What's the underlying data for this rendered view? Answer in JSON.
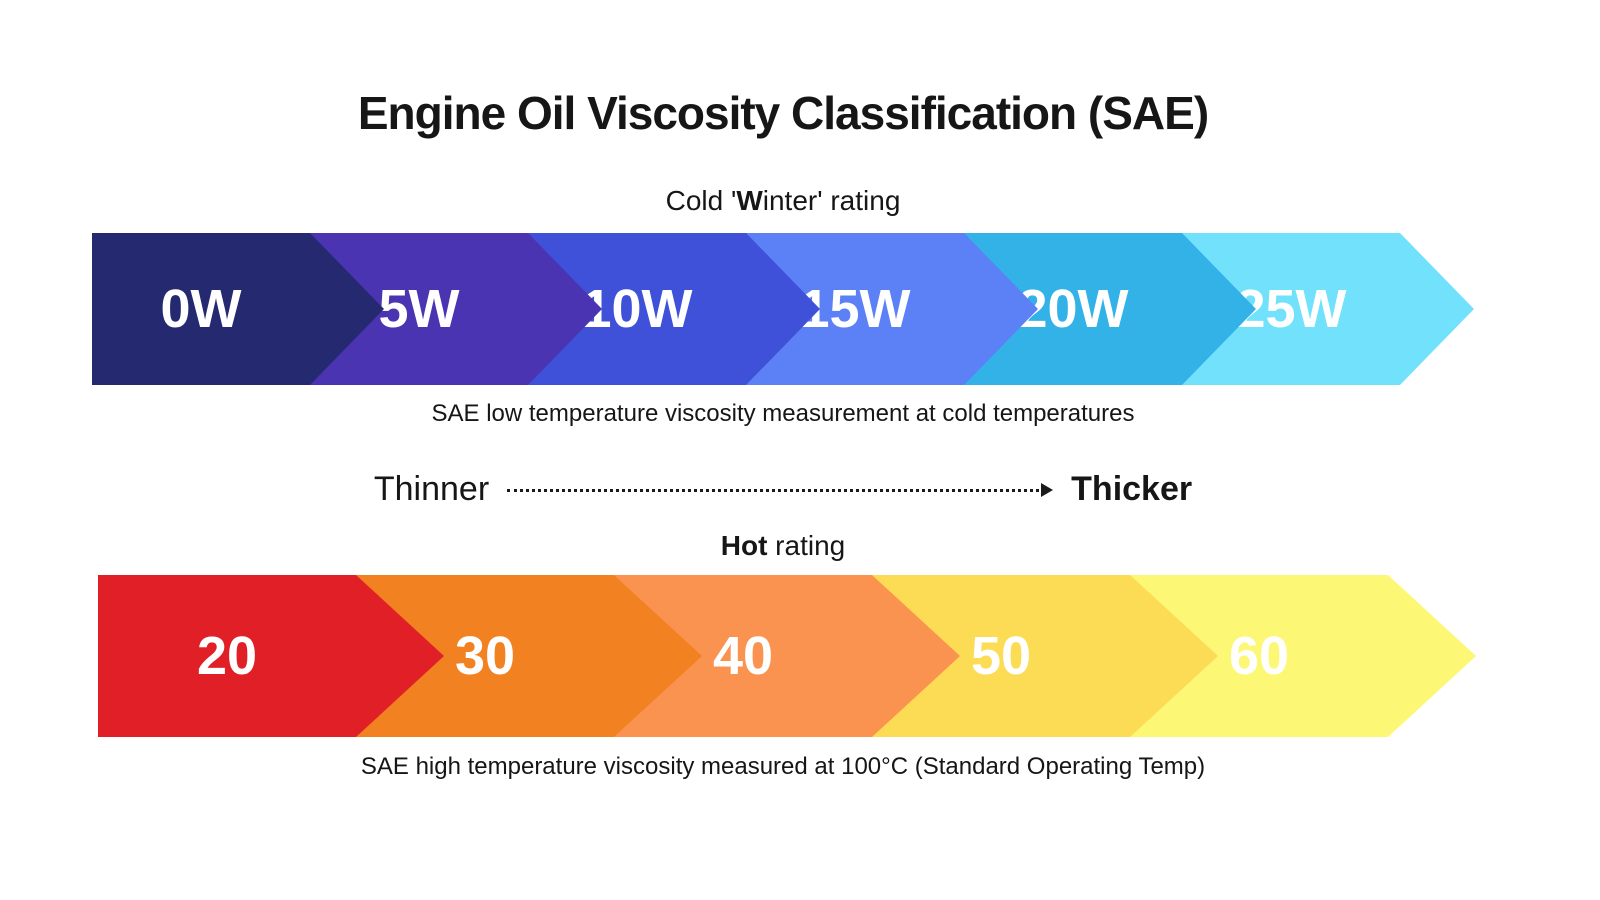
{
  "title": "Engine Oil Viscosity Classification (SAE)",
  "cold_section": {
    "heading": {
      "prefix": "Cold '",
      "bold": "W",
      "suffix": "inter' rating"
    },
    "caption": "SAE low temperature viscosity measurement at cold temperatures",
    "segments": [
      {
        "label": "0W",
        "color": "#252a70"
      },
      {
        "label": "5W",
        "color": "#4a34b2"
      },
      {
        "label": "10W",
        "color": "#3f51d8"
      },
      {
        "label": "15W",
        "color": "#5c80f6"
      },
      {
        "label": "20W",
        "color": "#33b2e8"
      },
      {
        "label": "25W",
        "color": "#72e1fc"
      }
    ]
  },
  "scale_indicator": {
    "left_label": "Thinner",
    "right_label": "Thicker"
  },
  "hot_section": {
    "heading": {
      "bold": "Hot",
      "suffix": " rating"
    },
    "caption": "SAE high temperature viscosity measured at 100°C (Standard Operating Temp)",
    "segments": [
      {
        "label": "20",
        "color": "#e02026"
      },
      {
        "label": "30",
        "color": "#f28122"
      },
      {
        "label": "40",
        "color": "#fb9350"
      },
      {
        "label": "50",
        "color": "#fcdb55"
      },
      {
        "label": "60",
        "color": "#fcf775"
      }
    ]
  },
  "styles": {
    "label_text_color": "#ffffff",
    "text_color": "#161616",
    "background": "#ffffff"
  }
}
